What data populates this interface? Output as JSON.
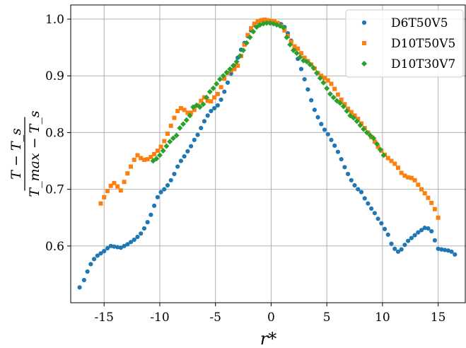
{
  "chart_data": {
    "type": "scatter",
    "title": "",
    "xlabel": "r*",
    "ylabel": {
      "numerator": "T − T_s",
      "denominator": "T_max − T_s"
    },
    "xlim": [
      -18,
      17.5
    ],
    "ylim": [
      0.5,
      1.025
    ],
    "xticks": [
      -15,
      -10,
      -5,
      0,
      5,
      10,
      15
    ],
    "xtick_labels": [
      "-15",
      "-10",
      "-5",
      "0",
      "5",
      "10",
      "15"
    ],
    "yticks": [
      0.6,
      0.7,
      0.8,
      0.9,
      1.0
    ],
    "ytick_labels": [
      "0.6",
      "0.7",
      "0.8",
      "0.9",
      "1.0"
    ],
    "grid": true,
    "legend_position": "top-right",
    "series": [
      {
        "name": "D6T50V5",
        "marker": "circle",
        "color": "#1f77b4",
        "x": [
          -17.2,
          -16.8,
          -16.5,
          -16.2,
          -15.9,
          -15.6,
          -15.3,
          -15.0,
          -14.7,
          -14.4,
          -14.1,
          -13.8,
          -13.5,
          -13.2,
          -12.9,
          -12.6,
          -12.3,
          -12.0,
          -11.7,
          -11.4,
          -11.1,
          -10.8,
          -10.5,
          -10.2,
          -9.9,
          -9.6,
          -9.3,
          -9.0,
          -8.7,
          -8.4,
          -8.1,
          -7.8,
          -7.5,
          -7.2,
          -6.9,
          -6.6,
          -6.3,
          -6.0,
          -5.7,
          -5.4,
          -5.1,
          -4.8,
          -4.5,
          -4.2,
          -3.9,
          -3.6,
          -3.3,
          -3.0,
          -2.7,
          -2.4,
          -2.1,
          -1.8,
          -1.5,
          -1.2,
          -0.9,
          -0.6,
          -0.3,
          0.0,
          0.3,
          0.6,
          0.9,
          1.2,
          1.5,
          1.8,
          2.1,
          2.4,
          2.7,
          3.0,
          3.3,
          3.6,
          3.9,
          4.2,
          4.5,
          4.8,
          5.1,
          5.4,
          5.7,
          6.0,
          6.3,
          6.6,
          6.9,
          7.2,
          7.5,
          7.8,
          8.1,
          8.4,
          8.7,
          9.0,
          9.3,
          9.6,
          9.9,
          10.2,
          10.5,
          10.8,
          11.1,
          11.4,
          11.7,
          12.0,
          12.3,
          12.6,
          12.9,
          13.2,
          13.5,
          13.8,
          14.1,
          14.4,
          14.7,
          15.0,
          15.3,
          15.6,
          15.9,
          16.2,
          16.5
        ],
        "y": [
          0.527,
          0.54,
          0.555,
          0.568,
          0.577,
          0.583,
          0.587,
          0.591,
          0.596,
          0.6,
          0.599,
          0.598,
          0.597,
          0.6,
          0.603,
          0.607,
          0.611,
          0.616,
          0.622,
          0.631,
          0.642,
          0.655,
          0.671,
          0.686,
          0.695,
          0.7,
          0.707,
          0.716,
          0.727,
          0.74,
          0.75,
          0.758,
          0.767,
          0.776,
          0.787,
          0.796,
          0.808,
          0.82,
          0.83,
          0.838,
          0.843,
          0.848,
          0.858,
          0.872,
          0.888,
          0.904,
          0.918,
          0.932,
          0.946,
          0.958,
          0.97,
          0.98,
          0.99,
          0.995,
          0.998,
          0.997,
          0.996,
          0.994,
          0.994,
          0.993,
          0.991,
          0.986,
          0.975,
          0.962,
          0.947,
          0.93,
          0.912,
          0.894,
          0.876,
          0.857,
          0.84,
          0.827,
          0.815,
          0.805,
          0.797,
          0.787,
          0.777,
          0.766,
          0.753,
          0.739,
          0.727,
          0.716,
          0.707,
          0.7,
          0.695,
          0.684,
          0.675,
          0.666,
          0.658,
          0.648,
          0.64,
          0.63,
          0.62,
          0.604,
          0.595,
          0.59,
          0.594,
          0.602,
          0.609,
          0.614,
          0.619,
          0.624,
          0.628,
          0.632,
          0.631,
          0.626,
          0.61,
          0.595,
          0.594,
          0.593,
          0.592,
          0.59,
          0.585
        ]
      },
      {
        "name": "D10T50V5",
        "marker": "square",
        "color": "#ff7f0e",
        "x": [
          -15.3,
          -15.0,
          -14.7,
          -14.4,
          -14.1,
          -13.8,
          -13.5,
          -13.2,
          -12.9,
          -12.6,
          -12.3,
          -12.0,
          -11.7,
          -11.4,
          -11.1,
          -10.8,
          -10.5,
          -10.2,
          -9.9,
          -9.6,
          -9.3,
          -9.0,
          -8.7,
          -8.4,
          -8.1,
          -7.8,
          -7.5,
          -7.2,
          -6.9,
          -6.6,
          -6.3,
          -6.0,
          -5.7,
          -5.4,
          -5.1,
          -4.8,
          -4.5,
          -4.2,
          -3.9,
          -3.6,
          -3.3,
          -3.0,
          -2.7,
          -2.4,
          -2.1,
          -1.8,
          -1.5,
          -1.2,
          -0.9,
          -0.6,
          -0.3,
          0.0,
          0.3,
          0.6,
          0.9,
          1.2,
          1.5,
          1.8,
          2.1,
          2.4,
          2.7,
          3.0,
          3.3,
          3.6,
          3.9,
          4.2,
          4.5,
          4.8,
          5.1,
          5.4,
          5.7,
          6.0,
          6.3,
          6.6,
          6.9,
          7.2,
          7.5,
          7.8,
          8.1,
          8.4,
          8.7,
          9.0,
          9.3,
          9.6,
          9.9,
          10.2,
          10.5,
          10.8,
          11.1,
          11.4,
          11.7,
          12.0,
          12.3,
          12.6,
          12.9,
          13.2,
          13.5,
          13.8,
          14.1,
          14.4,
          14.7,
          15.0
        ],
        "y": [
          0.675,
          0.686,
          0.697,
          0.706,
          0.711,
          0.705,
          0.698,
          0.713,
          0.728,
          0.74,
          0.752,
          0.76,
          0.755,
          0.752,
          0.753,
          0.757,
          0.762,
          0.768,
          0.775,
          0.785,
          0.798,
          0.812,
          0.826,
          0.838,
          0.843,
          0.84,
          0.835,
          0.835,
          0.84,
          0.848,
          0.856,
          0.862,
          0.856,
          0.855,
          0.862,
          0.868,
          0.88,
          0.895,
          0.905,
          0.91,
          0.912,
          0.918,
          0.935,
          0.955,
          0.972,
          0.984,
          0.992,
          0.996,
          0.998,
          0.999,
          0.998,
          0.997,
          0.996,
          0.993,
          0.988,
          0.98,
          0.97,
          0.96,
          0.952,
          0.948,
          0.94,
          0.932,
          0.926,
          0.92,
          0.913,
          0.905,
          0.9,
          0.896,
          0.892,
          0.886,
          0.877,
          0.867,
          0.858,
          0.85,
          0.842,
          0.836,
          0.83,
          0.824,
          0.816,
          0.808,
          0.8,
          0.792,
          0.784,
          0.775,
          0.768,
          0.761,
          0.755,
          0.75,
          0.745,
          0.738,
          0.729,
          0.724,
          0.721,
          0.72,
          0.716,
          0.708,
          0.7,
          0.693,
          0.685,
          0.676,
          0.665,
          0.65
        ]
      },
      {
        "name": "D10T30V7",
        "marker": "diamond",
        "color": "#2ca02c",
        "x": [
          -10.6,
          -10.3,
          -10.0,
          -9.7,
          -9.4,
          -9.1,
          -8.8,
          -8.5,
          -8.2,
          -7.9,
          -7.6,
          -7.3,
          -7.0,
          -6.7,
          -6.4,
          -6.1,
          -5.8,
          -5.5,
          -5.2,
          -4.9,
          -4.6,
          -4.3,
          -4.0,
          -3.7,
          -3.4,
          -3.1,
          -2.8,
          -2.5,
          -2.2,
          -1.9,
          -1.6,
          -1.3,
          -1.0,
          -0.7,
          -0.4,
          -0.1,
          0.2,
          0.5,
          0.8,
          1.1,
          1.4,
          1.7,
          2.0,
          2.3,
          2.6,
          2.9,
          3.2,
          3.5,
          3.8,
          4.1,
          4.4,
          4.7,
          5.0,
          5.3,
          5.6,
          5.9,
          6.2,
          6.5,
          6.8,
          7.1,
          7.4,
          7.7,
          8.0,
          8.3,
          8.6,
          8.9,
          9.2,
          9.5,
          9.8,
          10.1
        ],
        "y": [
          0.75,
          0.754,
          0.76,
          0.768,
          0.776,
          0.784,
          0.79,
          0.795,
          0.808,
          0.815,
          0.822,
          0.83,
          0.845,
          0.848,
          0.845,
          0.85,
          0.862,
          0.872,
          0.878,
          0.886,
          0.894,
          0.9,
          0.906,
          0.912,
          0.918,
          0.925,
          0.935,
          0.945,
          0.958,
          0.968,
          0.978,
          0.986,
          0.99,
          0.992,
          0.993,
          0.993,
          0.992,
          0.99,
          0.988,
          0.985,
          0.968,
          0.955,
          0.945,
          0.94,
          0.933,
          0.927,
          0.925,
          0.92,
          0.914,
          0.905,
          0.896,
          0.888,
          0.878,
          0.868,
          0.862,
          0.856,
          0.852,
          0.846,
          0.838,
          0.83,
          0.826,
          0.82,
          0.813,
          0.806,
          0.8,
          0.795,
          0.79,
          0.78,
          0.77,
          0.76
        ]
      }
    ]
  }
}
